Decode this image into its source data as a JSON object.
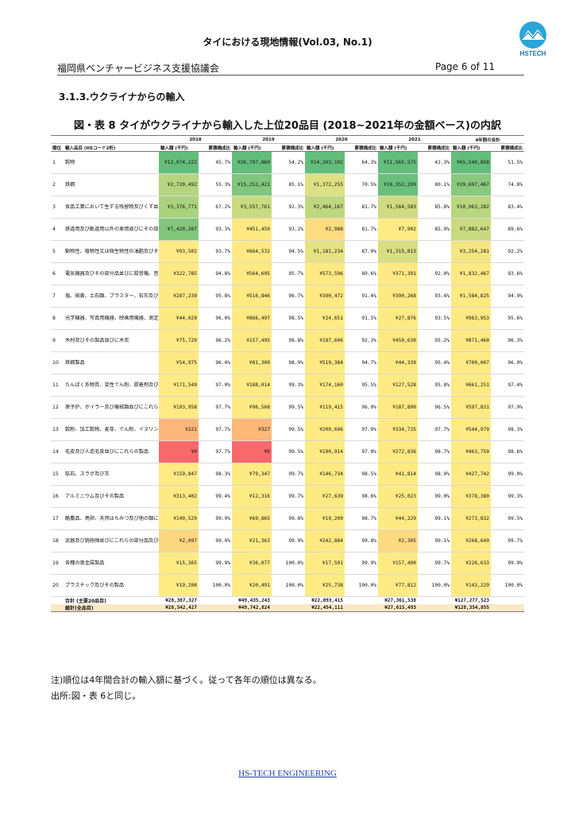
{
  "header": {
    "title": "タイにおける現地情報(Vol.03, No.1)",
    "org": "福岡県ベンチャービジネス支援協議会",
    "page": "Page 6 of 11",
    "logo_text": "HSTECH"
  },
  "section_title": "3.1.3.ウクライナからの輸入",
  "figure_title": "図・表 8 タイがウクライナから輸入した上位20品目 (2018~2021年の金額ベース)の内訳",
  "table": {
    "col_rank": "順位",
    "col_item": "輸入品目 (HSコード2桁)",
    "years": [
      "2018",
      "2019",
      "2020",
      "2021",
      "4年間の合計"
    ],
    "amount_label": "輸入額 (千円)",
    "share_label": "累積構成比",
    "rows": [
      {
        "rank": "1",
        "name": "穀物",
        "cells": [
          [
            "¥12,974,222",
            "45.7%"
          ],
          [
            "¥26,797,869",
            "54.2%"
          ],
          [
            "¥14,203,192",
            "64.3%"
          ],
          [
            "¥11,565,575",
            "42.3%"
          ],
          [
            "¥65,540,858",
            "51.5%"
          ]
        ]
      },
      {
        "rank": "2",
        "name": "鉄鋼",
        "cells": [
          [
            "¥2,720,492",
            "55.3%"
          ],
          [
            "¥15,252,421",
            "85.1%"
          ],
          [
            "¥1,372,255",
            "70.5%"
          ],
          [
            "¥10,352,299",
            "80.1%"
          ],
          [
            "¥29,697,467",
            "74.8%"
          ]
        ]
      },
      {
        "rank": "3",
        "name": "食品工業において生ずる残留物及びくず並びに調製飼料",
        "cells": [
          [
            "¥3,376,771",
            "67.2%"
          ],
          [
            "¥3,557,761",
            "92.3%"
          ],
          [
            "¥2,464,167",
            "81.7%"
          ],
          [
            "¥1,564,583",
            "85.8%"
          ],
          [
            "¥10,963,282",
            "83.4%"
          ]
        ]
      },
      {
        "rank": "4",
        "name": "鉄道用及び軌道用以外の車両並びにその部分品及び附属品",
        "cells": [
          [
            "¥7,420,307",
            "93.3%"
          ],
          [
            "¥451,450",
            "93.2%"
          ],
          [
            "¥2,988",
            "81.7%"
          ],
          [
            "¥7,902",
            "85.9%"
          ],
          [
            "¥7,882,647",
            "89.6%"
          ]
        ]
      },
      {
        "rank": "5",
        "name": "動物性、植物性又は微生物性の油脂及びその分解生産物、調製食用脂並びに動物性又は植物性のろう",
        "cells": [
          [
            "¥93,502",
            "93.7%"
          ],
          [
            "¥664,532",
            "94.5%"
          ],
          [
            "¥1,181,234",
            "87.0%"
          ],
          [
            "¥1,315,013",
            ""
          ],
          [
            "¥3,254,281",
            "92.2%"
          ]
        ]
      },
      {
        "rank": "6",
        "name": "電気機器及びその部分品並びに録音機、音声再生機並びにテレビジョンの映像及び音声の記録用又は再生用の機器並びにこれらの部分品及び附属品",
        "cells": [
          [
            "¥322,785",
            "94.8%"
          ],
          [
            "¥564,695",
            "95.7%"
          ],
          [
            "¥573,596",
            "89.6%"
          ],
          [
            "¥371,391",
            "92.0%"
          ],
          [
            "¥1,832,467",
            "93.6%"
          ]
        ]
      },
      {
        "rank": "7",
        "name": "塩、硫黄、土石類、プラスター、石灰及びセメント",
        "cells": [
          [
            "¥287,239",
            "95.8%"
          ],
          [
            "¥516,846",
            "96.7%"
          ],
          [
            "¥390,472",
            "91.4%"
          ],
          [
            "¥390,268",
            "93.4%"
          ],
          [
            "¥1,584,825",
            "94.9%"
          ]
        ]
      },
      {
        "rank": "8",
        "name": "光学機器、写真用機器、映画用機器、測定機器、検査機器、精密機器及び医療用機器並びにこれらの部分品及び附属品",
        "cells": [
          [
            "¥44,029",
            "96.0%"
          ],
          [
            "¥866,497",
            "98.5%"
          ],
          [
            "¥24,651",
            "91.5%"
          ],
          [
            "¥27,876",
            "93.5%"
          ],
          [
            "¥963,953",
            "95.6%"
          ]
        ]
      },
      {
        "rank": "9",
        "name": "木材及びその製品並びに木炭",
        "cells": [
          [
            "¥75,729",
            "96.2%"
          ],
          [
            "¥157,495",
            "98.8%"
          ],
          [
            "¥187,606",
            "92.3%"
          ],
          [
            "¥450,630",
            "95.2%"
          ],
          [
            "¥871,460",
            "96.3%"
          ]
        ]
      },
      {
        "rank": "10",
        "name": "鉄鋼製品",
        "cells": [
          [
            "¥54,975",
            "96.4%"
          ],
          [
            "¥81,309",
            "98.9%"
          ],
          [
            "¥519,384",
            "94.7%"
          ],
          [
            "¥44,339",
            "95.4%"
          ],
          [
            "¥700,007",
            "96.9%"
          ]
        ]
      },
      {
        "rank": "11",
        "name": "たんぱく系物質、変性でん粉、膠着剤及び酵素",
        "cells": [
          [
            "¥171,549",
            "97.0%"
          ],
          [
            "¥188,014",
            "99.3%"
          ],
          [
            "¥174,160",
            "95.5%"
          ],
          [
            "¥127,528",
            "95.8%"
          ],
          [
            "¥661,251",
            "97.4%"
          ]
        ]
      },
      {
        "rank": "12",
        "name": "原子炉、ボイラー及び機械類並びにこれらの部分品",
        "cells": [
          [
            "¥193,958",
            "97.7%"
          ],
          [
            "¥96,568",
            "99.5%"
          ],
          [
            "¥119,415",
            "96.0%"
          ],
          [
            "¥187,890",
            "96.5%"
          ],
          [
            "¥597,831",
            "97.9%"
          ]
        ]
      },
      {
        "rank": "13",
        "name": "穀粉、加工穀物、麦芽、でん粉、イヌリン及び小麦グルテン",
        "cells": [
          [
            "¥221",
            "97.7%"
          ],
          [
            "¥327",
            "99.5%"
          ],
          [
            "¥209,696",
            "97.0%"
          ],
          [
            "¥334,735",
            "97.7%"
          ],
          [
            "¥544,979",
            "98.3%"
          ]
        ]
      },
      {
        "rank": "14",
        "name": "毛皮及び人造毛皮並びにこれらの製品",
        "cells": [
          [
            "¥0",
            "97.7%"
          ],
          [
            "¥0",
            "99.5%"
          ],
          [
            "¥190,914",
            "97.8%"
          ],
          [
            "¥272,836",
            "98.7%"
          ],
          [
            "¥463,750",
            "98.6%"
          ]
        ]
      },
      {
        "rank": "15",
        "name": "鉱石、スラグ及び灰",
        "cells": [
          [
            "¥159,847",
            "98.3%"
          ],
          [
            "¥79,347",
            "99.7%"
          ],
          [
            "¥146,734",
            "98.5%"
          ],
          [
            "¥41,814",
            "98.9%"
          ],
          [
            "¥427,742",
            "99.0%"
          ]
        ]
      },
      {
        "rank": "16",
        "name": "アルミニウム及びその製品",
        "cells": [
          [
            "¥313,402",
            "99.4%"
          ],
          [
            "¥12,316",
            "99.7%"
          ],
          [
            "¥27,639",
            "98.6%"
          ],
          [
            "¥25,023",
            "99.0%"
          ],
          [
            "¥378,380",
            "99.3%"
          ]
        ]
      },
      {
        "rank": "17",
        "name": "酪農品、鳥卵、天然はちみつ及び他の類に該当しない食用の動物性生産品",
        "cells": [
          [
            "¥140,529",
            "99.9%"
          ],
          [
            "¥69,865",
            "99.8%"
          ],
          [
            "¥19,209",
            "98.7%"
          ],
          [
            "¥44,229",
            "99.1%"
          ],
          [
            "¥273,832",
            "99.5%"
          ]
        ]
      },
      {
        "rank": "18",
        "name": "武器及び銃砲弾並びにこれらの部分品及び附属品",
        "cells": [
          [
            "¥2,097",
            "99.9%"
          ],
          [
            "¥21,363",
            "99.9%"
          ],
          [
            "¥242,884",
            "99.8%"
          ],
          [
            "¥2,305",
            "99.1%"
          ],
          [
            "¥268,649",
            "99.7%"
          ]
        ]
      },
      {
        "rank": "19",
        "name": "各種の卑金属製品",
        "cells": [
          [
            "¥15,365",
            "99.9%"
          ],
          [
            "¥36,077",
            "100.0%"
          ],
          [
            "¥17,501",
            "99.9%"
          ],
          [
            "¥157,490",
            "99.7%"
          ],
          [
            "¥226,633",
            "99.9%"
          ]
        ]
      },
      {
        "rank": "20",
        "name": "プラスチック及びその製品",
        "cells": [
          [
            "¥19,208",
            "100.0%"
          ],
          [
            "¥20,491",
            "100.0%"
          ],
          [
            "¥25,738",
            "100.0%"
          ],
          [
            "¥77,812",
            "100.0%"
          ],
          [
            "¥143,229",
            "100.0%"
          ]
        ]
      }
    ],
    "totals": [
      {
        "label": "合計 (主要20品目)",
        "values": [
          "¥28,387,327",
          "¥49,435,243",
          "¥22,093,415",
          "¥27,361,538",
          "¥127,277,523"
        ]
      },
      {
        "label": "総計(全品目)",
        "values": [
          "¥28,542,427",
          "¥49,742,824",
          "¥22,454,111",
          "¥27,615,493",
          "¥128,354,855"
        ]
      }
    ]
  },
  "notes": [
    "注)順位は4年間合計の輸入額に基づく。従って各年の順位は異なる。",
    "出所:図・表 6と同じ。"
  ],
  "footer": "HS-TECH ENGINEERING"
}
